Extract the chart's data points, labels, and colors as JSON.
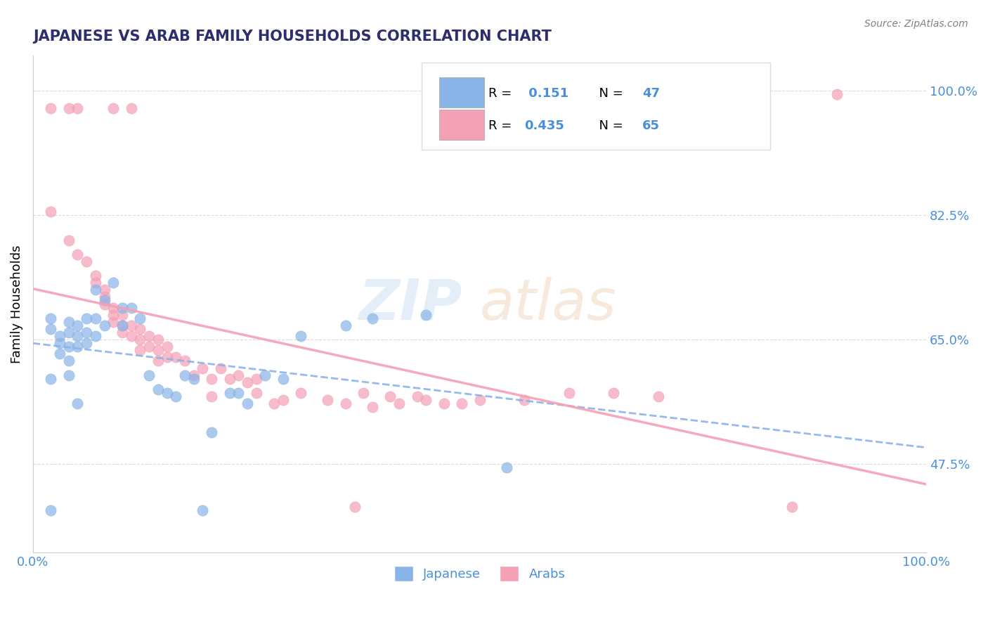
{
  "title": "JAPANESE VS ARAB FAMILY HOUSEHOLDS CORRELATION CHART",
  "source": "Source: ZipAtlas.com",
  "ylabel": "Family Households",
  "y_tick_labels": [
    "100.0%",
    "82.5%",
    "65.0%",
    "47.5%"
  ],
  "y_tick_values": [
    1.0,
    0.825,
    0.65,
    0.475
  ],
  "x_range": [
    0.0,
    1.0
  ],
  "y_range": [
    0.35,
    1.05
  ],
  "legend_japanese": "Japanese",
  "legend_arabs": "Arabs",
  "r_japanese": "0.151",
  "n_japanese": "47",
  "r_arabs": "0.435",
  "n_arabs": "65",
  "color_japanese": "#89b4e8",
  "color_arabs": "#f4a0b5",
  "title_color": "#2e2e6e",
  "axis_label_color": "#4a90d9",
  "japanese_points": [
    [
      0.02,
      0.68
    ],
    [
      0.02,
      0.665
    ],
    [
      0.03,
      0.655
    ],
    [
      0.03,
      0.645
    ],
    [
      0.03,
      0.63
    ],
    [
      0.04,
      0.675
    ],
    [
      0.04,
      0.66
    ],
    [
      0.04,
      0.64
    ],
    [
      0.04,
      0.62
    ],
    [
      0.04,
      0.6
    ],
    [
      0.05,
      0.67
    ],
    [
      0.05,
      0.655
    ],
    [
      0.05,
      0.64
    ],
    [
      0.05,
      0.56
    ],
    [
      0.06,
      0.68
    ],
    [
      0.06,
      0.66
    ],
    [
      0.06,
      0.645
    ],
    [
      0.07,
      0.72
    ],
    [
      0.07,
      0.68
    ],
    [
      0.07,
      0.655
    ],
    [
      0.08,
      0.705
    ],
    [
      0.08,
      0.67
    ],
    [
      0.09,
      0.73
    ],
    [
      0.1,
      0.695
    ],
    [
      0.1,
      0.67
    ],
    [
      0.11,
      0.695
    ],
    [
      0.12,
      0.68
    ],
    [
      0.13,
      0.6
    ],
    [
      0.14,
      0.58
    ],
    [
      0.15,
      0.575
    ],
    [
      0.16,
      0.57
    ],
    [
      0.17,
      0.6
    ],
    [
      0.18,
      0.595
    ],
    [
      0.19,
      0.41
    ],
    [
      0.2,
      0.52
    ],
    [
      0.22,
      0.575
    ],
    [
      0.23,
      0.575
    ],
    [
      0.24,
      0.56
    ],
    [
      0.26,
      0.6
    ],
    [
      0.28,
      0.595
    ],
    [
      0.3,
      0.655
    ],
    [
      0.35,
      0.67
    ],
    [
      0.38,
      0.68
    ],
    [
      0.44,
      0.685
    ],
    [
      0.53,
      0.47
    ],
    [
      0.02,
      0.41
    ],
    [
      0.02,
      0.595
    ]
  ],
  "arab_points": [
    [
      0.02,
      0.975
    ],
    [
      0.04,
      0.975
    ],
    [
      0.05,
      0.975
    ],
    [
      0.09,
      0.975
    ],
    [
      0.11,
      0.975
    ],
    [
      0.02,
      0.83
    ],
    [
      0.04,
      0.79
    ],
    [
      0.05,
      0.77
    ],
    [
      0.06,
      0.76
    ],
    [
      0.07,
      0.74
    ],
    [
      0.07,
      0.73
    ],
    [
      0.08,
      0.72
    ],
    [
      0.08,
      0.71
    ],
    [
      0.08,
      0.7
    ],
    [
      0.09,
      0.695
    ],
    [
      0.09,
      0.685
    ],
    [
      0.09,
      0.675
    ],
    [
      0.1,
      0.685
    ],
    [
      0.1,
      0.67
    ],
    [
      0.1,
      0.66
    ],
    [
      0.11,
      0.67
    ],
    [
      0.11,
      0.655
    ],
    [
      0.12,
      0.665
    ],
    [
      0.12,
      0.65
    ],
    [
      0.12,
      0.635
    ],
    [
      0.13,
      0.655
    ],
    [
      0.13,
      0.64
    ],
    [
      0.14,
      0.65
    ],
    [
      0.14,
      0.635
    ],
    [
      0.14,
      0.62
    ],
    [
      0.15,
      0.64
    ],
    [
      0.15,
      0.625
    ],
    [
      0.16,
      0.625
    ],
    [
      0.17,
      0.62
    ],
    [
      0.18,
      0.6
    ],
    [
      0.19,
      0.61
    ],
    [
      0.2,
      0.595
    ],
    [
      0.2,
      0.57
    ],
    [
      0.21,
      0.61
    ],
    [
      0.22,
      0.595
    ],
    [
      0.23,
      0.6
    ],
    [
      0.24,
      0.59
    ],
    [
      0.25,
      0.595
    ],
    [
      0.25,
      0.575
    ],
    [
      0.27,
      0.56
    ],
    [
      0.28,
      0.565
    ],
    [
      0.3,
      0.575
    ],
    [
      0.33,
      0.565
    ],
    [
      0.35,
      0.56
    ],
    [
      0.36,
      0.415
    ],
    [
      0.37,
      0.575
    ],
    [
      0.38,
      0.555
    ],
    [
      0.4,
      0.57
    ],
    [
      0.41,
      0.56
    ],
    [
      0.43,
      0.57
    ],
    [
      0.44,
      0.565
    ],
    [
      0.46,
      0.56
    ],
    [
      0.48,
      0.56
    ],
    [
      0.5,
      0.565
    ],
    [
      0.55,
      0.565
    ],
    [
      0.6,
      0.575
    ],
    [
      0.65,
      0.575
    ],
    [
      0.7,
      0.57
    ],
    [
      0.85,
      0.415
    ],
    [
      0.9,
      0.995
    ]
  ]
}
